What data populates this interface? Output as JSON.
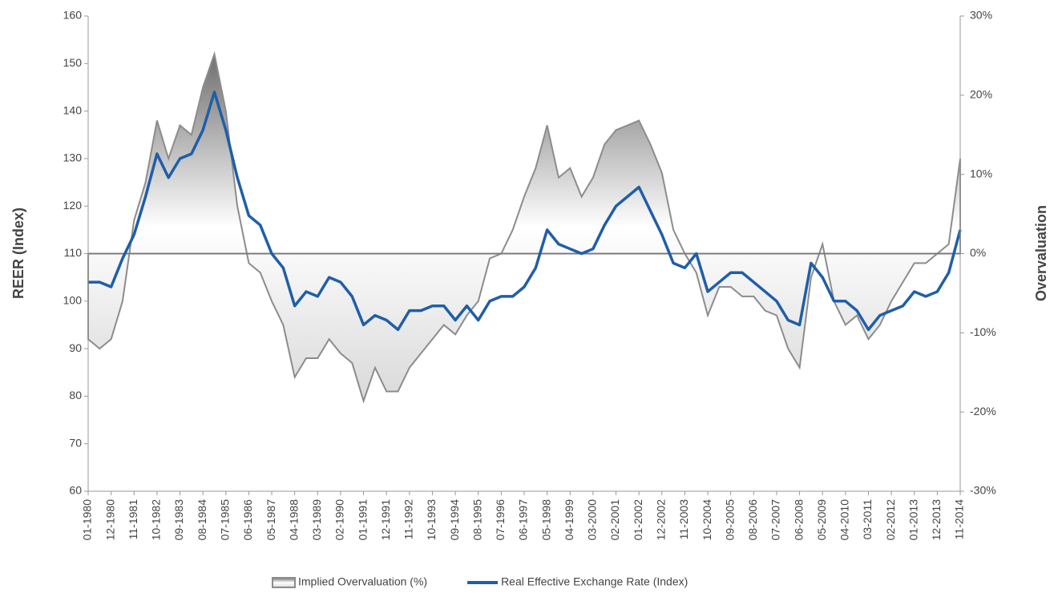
{
  "chart_data": {
    "type": "combo",
    "y_label": "REER (Index)",
    "y2_label": "Overvaluation",
    "categories": [
      "01-1980",
      null,
      "12-1980",
      null,
      "11-1981",
      null,
      "10-1982",
      null,
      "09-1983",
      null,
      "08-1984",
      null,
      "07-1985",
      null,
      "06-1986",
      null,
      "05-1987",
      null,
      "04-1988",
      null,
      "03-1989",
      null,
      "02-1990",
      null,
      "01-1991",
      null,
      "12-1991",
      null,
      "11-1992",
      null,
      "10-1993",
      null,
      "09-1994",
      null,
      "08-1995",
      null,
      "07-1996",
      null,
      "06-1997",
      null,
      "05-1998",
      null,
      "04-1999",
      null,
      "03-2000",
      null,
      "02-2001",
      null,
      "01-2002",
      null,
      "12-2002",
      null,
      "11-2003",
      null,
      "10-2004",
      null,
      "09-2005",
      null,
      "08-2006",
      null,
      "07-2007",
      null,
      "06-2008",
      null,
      "05-2009",
      null,
      "04-2010",
      null,
      "03-2011",
      null,
      "02-2012",
      null,
      "01-2013",
      null,
      "12-2013",
      null,
      "11-2014"
    ],
    "series": [
      {
        "name": "Implied Overvaluation (%)",
        "type": "area",
        "axis": "y2",
        "color": "#8c8c8c",
        "values": [
          -10.8,
          -12,
          -10.8,
          -6,
          4.2,
          9,
          16.8,
          12,
          16.2,
          15,
          21,
          25.2,
          18,
          6,
          -1.2,
          -2.4,
          -6,
          -9,
          -15.6,
          -13.2,
          -13.2,
          -10.8,
          -12.6,
          -13.8,
          -18.6,
          -14.4,
          -17.4,
          -17.4,
          -14.4,
          -12.6,
          -10.8,
          -9,
          -10.2,
          -7.8,
          -6,
          -0.6,
          0,
          3,
          7.2,
          10.8,
          16.2,
          9.6,
          10.8,
          7.2,
          9.6,
          13.8,
          15.6,
          16.2,
          16.8,
          13.8,
          10.2,
          3,
          0,
          -2.4,
          -7.8,
          -4.2,
          -4.2,
          -5.4,
          -5.4,
          -7.2,
          -7.8,
          -12,
          -14.4,
          -3,
          1.2,
          -6,
          -9,
          -7.8,
          -10.8,
          -9,
          -6,
          -3.6,
          -1.2,
          -1.2,
          0,
          1.2,
          12
        ]
      },
      {
        "name": "Real Effective Exchange Rate (Index)",
        "type": "line",
        "color": "#1f5ea8",
        "values": [
          104,
          104,
          103,
          109,
          114,
          122,
          131,
          126,
          130,
          131,
          136,
          144,
          136,
          126,
          118,
          116,
          110,
          107,
          99,
          102,
          101,
          105,
          104,
          101,
          95,
          97,
          96,
          94,
          98,
          98,
          99,
          99,
          96,
          99,
          96,
          100,
          101,
          101,
          103,
          107,
          115,
          112,
          111,
          110,
          111,
          116,
          120,
          122,
          124,
          119,
          114,
          108,
          107,
          110,
          102,
          104,
          106,
          106,
          104,
          102,
          100,
          96,
          95,
          108,
          105,
          100,
          100,
          98,
          94,
          97,
          98,
          99,
          102,
          101,
          102,
          106,
          115
        ]
      }
    ],
    "ylim": [
      60,
      160
    ],
    "yticks": [
      60,
      70,
      80,
      90,
      100,
      110,
      120,
      130,
      140,
      150,
      160
    ],
    "y2lim": [
      -30,
      30
    ],
    "y2ticks": [
      {
        "value": -30,
        "label": "-30%"
      },
      {
        "value": -20,
        "label": "-20%"
      },
      {
        "value": -10,
        "label": "-10%"
      },
      {
        "value": 0,
        "label": "0%"
      },
      {
        "value": 10,
        "label": "10%"
      },
      {
        "value": 20,
        "label": "20%"
      },
      {
        "value": 30,
        "label": "30%"
      }
    ],
    "legend": "bottom"
  }
}
